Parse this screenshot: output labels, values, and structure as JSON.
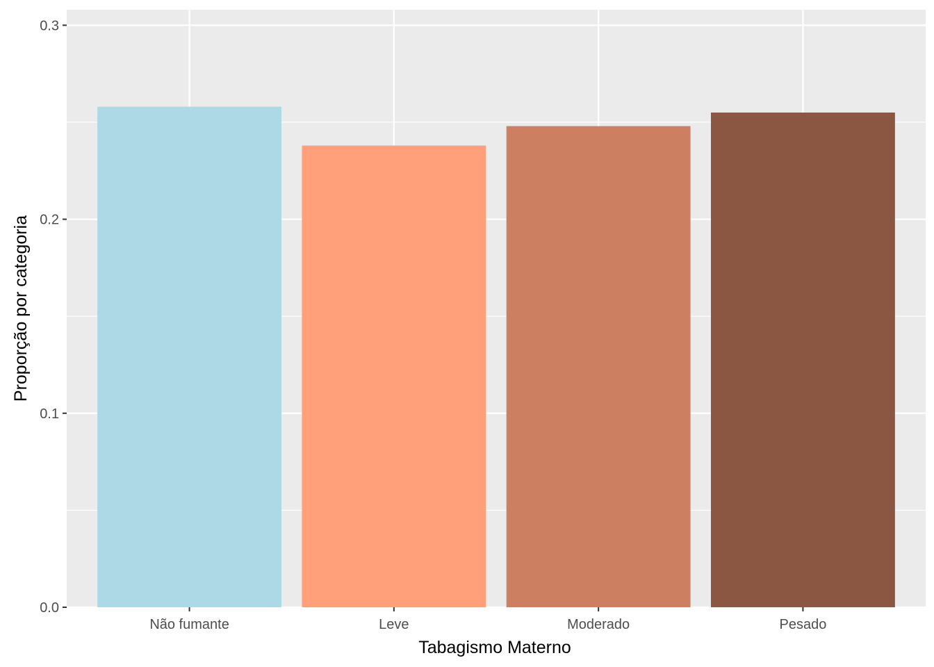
{
  "chart_data": {
    "type": "bar",
    "title": "",
    "xlabel": "Tabagismo Materno",
    "ylabel": "Proporção por categoria",
    "categories": [
      "Não fumante",
      "Leve",
      "Moderado",
      "Pesado"
    ],
    "values": [
      0.258,
      0.238,
      0.248,
      0.255
    ],
    "colors": [
      "#ADD8E6",
      "#FFA07A",
      "#CD7F62",
      "#8B5742"
    ],
    "ylim": [
      0,
      0.308
    ],
    "y_ticks": [
      0.0,
      0.1,
      0.2,
      0.3
    ],
    "y_tick_labels": [
      "0.0",
      "0.1",
      "0.2",
      "0.3"
    ],
    "grid": true,
    "legend": "none",
    "panel_background": "#EBEBEB",
    "grid_color": "#FFFFFF"
  }
}
